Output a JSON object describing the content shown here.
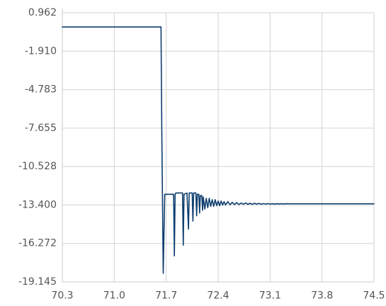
{
  "chart_data": {
    "type": "line",
    "title": "",
    "xlabel": "",
    "ylabel": "",
    "xlim": [
      70.3,
      74.5
    ],
    "ylim": [
      -19.145,
      0.962
    ],
    "grid": true,
    "legend": "none",
    "x_ticks": [
      "70.3",
      "71.0",
      "71.7",
      "72.4",
      "73.1",
      "73.8",
      "74.5"
    ],
    "y_ticks": [
      "0.962",
      "-1.910",
      "-4.783",
      "-7.655",
      "-10.528",
      "-13.400",
      "-16.272",
      "-19.145"
    ],
    "series": [
      {
        "color": "#0f3e6f",
        "x": [
          70.3,
          71.63,
          71.64,
          71.66,
          71.68,
          71.7,
          71.8,
          71.81,
          71.82,
          71.83,
          71.92,
          71.93,
          71.94,
          71.98,
          72.0,
          72.01,
          72.02,
          72.05,
          72.06,
          72.07,
          72.1,
          72.11,
          72.12,
          72.14,
          72.15,
          72.16,
          72.18,
          72.19,
          72.2,
          72.22,
          72.24,
          72.26,
          72.28,
          72.3,
          72.32,
          72.34,
          72.36,
          72.38,
          72.4,
          72.42,
          72.44,
          72.46,
          72.48,
          72.5,
          72.53,
          72.56,
          72.59,
          72.62,
          72.65,
          72.68,
          72.71,
          72.74,
          72.77,
          72.8,
          72.83,
          72.86,
          72.89,
          72.92,
          72.95,
          72.98,
          73.01,
          73.04,
          73.07,
          73.1,
          73.13,
          73.16,
          73.19,
          73.22,
          73.25,
          73.28,
          73.31,
          73.34,
          74.5
        ],
        "y": [
          -0.1,
          -0.1,
          -7.5,
          -18.5,
          -12.6,
          -12.6,
          -12.6,
          -17.2,
          -12.6,
          -12.5,
          -12.5,
          -16.4,
          -12.6,
          -12.5,
          -15.2,
          -12.5,
          -12.5,
          -12.5,
          -14.6,
          -12.5,
          -12.5,
          -14.2,
          -12.6,
          -12.6,
          -14.0,
          -12.7,
          -12.7,
          -13.8,
          -12.8,
          -13.7,
          -12.9,
          -13.6,
          -12.9,
          -13.5,
          -13.0,
          -13.5,
          -13.0,
          -13.45,
          -13.1,
          -13.45,
          -13.1,
          -13.4,
          -13.15,
          -13.4,
          -13.15,
          -13.38,
          -13.2,
          -13.37,
          -13.22,
          -13.37,
          -13.25,
          -13.35,
          -13.25,
          -13.35,
          -13.27,
          -13.35,
          -13.27,
          -13.34,
          -13.28,
          -13.34,
          -13.29,
          -13.33,
          -13.29,
          -13.33,
          -13.3,
          -13.33,
          -13.3,
          -13.32,
          -13.3,
          -13.32,
          -13.3,
          -13.31,
          -13.31
        ]
      }
    ]
  }
}
